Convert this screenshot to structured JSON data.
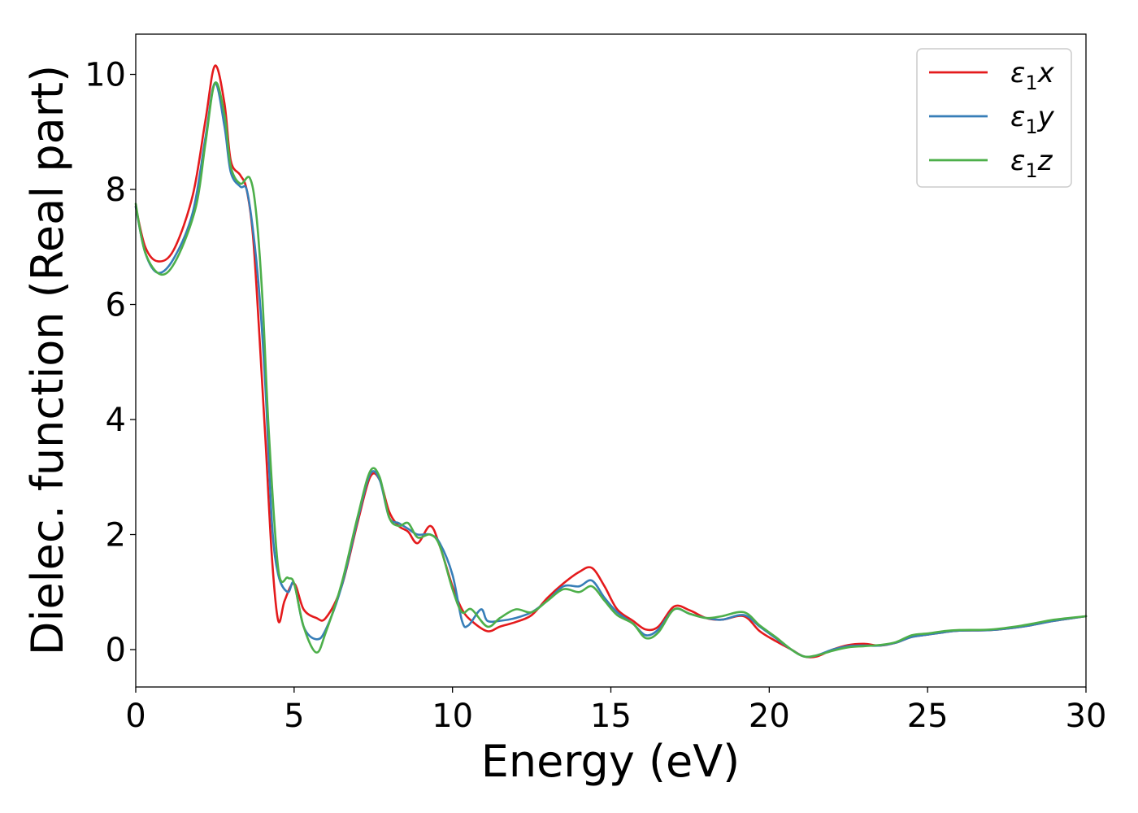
{
  "chart_data": {
    "type": "line",
    "title": "",
    "xlabel": "Energy (eV)",
    "ylabel": "Dielec. function (Real part)",
    "xlim": [
      0,
      30
    ],
    "ylim": [
      -0.65,
      10.7
    ],
    "xticks": [
      0,
      5,
      10,
      15,
      20,
      25,
      30
    ],
    "yticks": [
      0,
      2,
      4,
      6,
      8,
      10
    ],
    "grid": false,
    "legend_position": "top-right",
    "series": [
      {
        "name": "ε1x",
        "legend_base": "ε",
        "legend_sub": "1",
        "legend_tail": "x",
        "color": "#e41a1c",
        "x": [
          0,
          0.3,
          0.7,
          1.2,
          1.8,
          2.2,
          2.5,
          2.8,
          3.0,
          3.3,
          3.5,
          3.7,
          3.9,
          4.1,
          4.3,
          4.5,
          4.7,
          5.0,
          5.3,
          5.7,
          6.0,
          6.5,
          7.0,
          7.4,
          7.7,
          8.0,
          8.3,
          8.6,
          8.9,
          9.3,
          9.6,
          10.0,
          10.3,
          10.6,
          11.1,
          11.5,
          12.0,
          12.5,
          13.0,
          13.5,
          14.0,
          14.4,
          14.8,
          15.2,
          15.7,
          16.1,
          16.5,
          17.0,
          17.5,
          18.0,
          18.5,
          19.2,
          19.7,
          20.2,
          20.7,
          21.1,
          21.5,
          22.0,
          22.5,
          23.0,
          23.5,
          24.0,
          24.5,
          25.0,
          25.5,
          26.0,
          27.0,
          28.0,
          29.0,
          30.0
        ],
        "y": [
          7.7,
          7.0,
          6.75,
          6.95,
          7.9,
          9.2,
          10.15,
          9.5,
          8.5,
          8.25,
          8.0,
          7.2,
          5.5,
          3.6,
          1.6,
          0.5,
          0.85,
          1.15,
          0.7,
          0.55,
          0.55,
          1.1,
          2.2,
          3.0,
          2.95,
          2.4,
          2.15,
          2.05,
          1.85,
          2.15,
          1.8,
          1.1,
          0.7,
          0.5,
          0.32,
          0.4,
          0.48,
          0.6,
          0.9,
          1.15,
          1.35,
          1.42,
          1.1,
          0.7,
          0.5,
          0.35,
          0.4,
          0.75,
          0.68,
          0.55,
          0.52,
          0.58,
          0.32,
          0.15,
          0.0,
          -0.12,
          -0.12,
          0.0,
          0.08,
          0.1,
          0.07,
          0.12,
          0.22,
          0.26,
          0.3,
          0.33,
          0.34,
          0.4,
          0.5,
          0.58
        ]
      },
      {
        "name": "ε1y",
        "legend_base": "ε",
        "legend_sub": "1",
        "legend_tail": "y",
        "color": "#377eb8",
        "x": [
          0,
          0.3,
          0.7,
          1.2,
          1.8,
          2.2,
          2.5,
          2.8,
          3.0,
          3.3,
          3.5,
          3.7,
          3.9,
          4.1,
          4.3,
          4.5,
          4.8,
          5.0,
          5.3,
          5.7,
          6.0,
          6.5,
          7.0,
          7.4,
          7.7,
          8.0,
          8.3,
          8.6,
          8.9,
          9.3,
          9.6,
          10.0,
          10.3,
          10.5,
          10.9,
          11.1,
          11.5,
          12.0,
          12.5,
          13.0,
          13.5,
          14.0,
          14.4,
          14.8,
          15.2,
          15.7,
          16.1,
          16.5,
          17.0,
          17.5,
          18.0,
          18.5,
          19.2,
          19.7,
          20.2,
          20.7,
          21.1,
          21.5,
          22.0,
          22.5,
          23.0,
          23.5,
          24.0,
          24.5,
          25.0,
          25.5,
          26.0,
          27.0,
          28.0,
          29.0,
          30.0
        ],
        "y": [
          7.7,
          6.9,
          6.55,
          6.8,
          7.6,
          8.9,
          9.85,
          9.1,
          8.3,
          8.05,
          8.0,
          7.3,
          6.2,
          4.5,
          2.2,
          1.3,
          1.0,
          1.15,
          0.4,
          0.18,
          0.35,
          1.1,
          2.25,
          3.05,
          2.95,
          2.3,
          2.2,
          2.1,
          2.0,
          2.0,
          1.85,
          1.3,
          0.5,
          0.42,
          0.7,
          0.5,
          0.5,
          0.55,
          0.65,
          0.85,
          1.1,
          1.1,
          1.2,
          0.9,
          0.65,
          0.45,
          0.25,
          0.35,
          0.7,
          0.62,
          0.55,
          0.52,
          0.6,
          0.4,
          0.2,
          0.0,
          -0.12,
          -0.1,
          0.0,
          0.06,
          0.07,
          0.07,
          0.12,
          0.22,
          0.26,
          0.3,
          0.33,
          0.34,
          0.4,
          0.5,
          0.58
        ]
      },
      {
        "name": "ε1z",
        "legend_base": "ε",
        "legend_sub": "1",
        "legend_tail": "z",
        "color": "#4daf4a",
        "x": [
          0,
          0.3,
          0.8,
          1.3,
          1.9,
          2.2,
          2.5,
          2.8,
          3.0,
          3.3,
          3.6,
          3.8,
          4.0,
          4.2,
          4.5,
          4.8,
          5.0,
          5.3,
          5.7,
          6.0,
          6.5,
          7.0,
          7.4,
          7.7,
          8.0,
          8.3,
          8.6,
          8.9,
          9.3,
          9.6,
          10.0,
          10.3,
          10.6,
          11.1,
          11.5,
          12.0,
          12.5,
          13.0,
          13.5,
          14.0,
          14.4,
          14.8,
          15.2,
          15.7,
          16.1,
          16.5,
          17.0,
          17.5,
          18.0,
          18.5,
          19.2,
          19.7,
          20.2,
          20.7,
          21.1,
          21.5,
          22.0,
          22.5,
          23.0,
          23.5,
          24.0,
          24.5,
          25.0,
          25.5,
          26.0,
          27.0,
          28.0,
          29.0,
          30.0
        ],
        "y": [
          7.75,
          6.9,
          6.52,
          6.8,
          7.7,
          8.8,
          9.85,
          9.3,
          8.4,
          8.1,
          8.2,
          7.6,
          6.1,
          3.8,
          1.4,
          1.25,
          1.15,
          0.4,
          -0.05,
          0.3,
          1.15,
          2.3,
          3.1,
          3.0,
          2.3,
          2.15,
          2.2,
          1.95,
          2.0,
          1.8,
          1.05,
          0.65,
          0.7,
          0.4,
          0.55,
          0.7,
          0.65,
          0.85,
          1.05,
          1.0,
          1.1,
          0.85,
          0.6,
          0.45,
          0.2,
          0.3,
          0.7,
          0.62,
          0.55,
          0.58,
          0.65,
          0.42,
          0.22,
          0.0,
          -0.12,
          -0.1,
          -0.02,
          0.04,
          0.06,
          0.08,
          0.13,
          0.25,
          0.28,
          0.32,
          0.34,
          0.35,
          0.42,
          0.52,
          0.58
        ]
      }
    ]
  }
}
